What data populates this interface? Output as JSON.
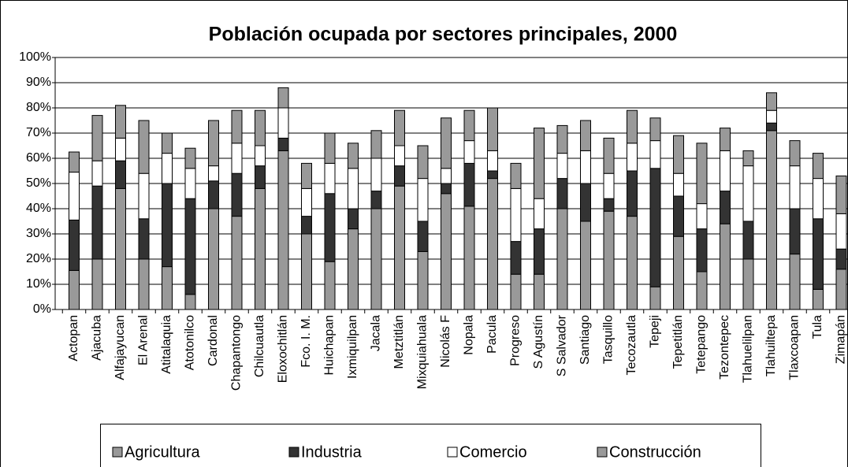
{
  "chart_data": {
    "type": "stacked_bar",
    "title": "Población ocupada por sectores principales, 2000",
    "categories": [
      "Actopan",
      "Ajacuba",
      "Alfajayucan",
      "El Arenal",
      "Atitalaquia",
      "Atotonilco",
      "Cardonal",
      "Chapantongo",
      "Chilcuautla",
      "Eloxochitlán",
      "Fco. I. M.",
      "Huichapan",
      "Ixmiquilpan",
      "Jacala",
      "Metztitlán",
      "Mixquiahuala",
      "Nicolás F",
      "Nopala",
      "Pacula",
      "Progreso",
      "S Agustín",
      "S Salvador",
      "Santiago",
      "Tasquillo",
      "Tecozautla",
      "Tepeji",
      "Tepetitlán",
      "Tetepango",
      "Tezontepec",
      "Tlahuelilpan",
      "Tlahuiltepa",
      "Tlaxcoapan",
      "Tula",
      "Zimapán"
    ],
    "series": [
      {
        "name": "Agricultura",
        "color": "#999999",
        "values": [
          15.5,
          20,
          48,
          20,
          17,
          6,
          40,
          37,
          48,
          63,
          30,
          19,
          32,
          40,
          49,
          23,
          46,
          41,
          52,
          14,
          14,
          40,
          35,
          39,
          37,
          9,
          29,
          15,
          34,
          20,
          71,
          22,
          8,
          16
        ]
      },
      {
        "name": "Industria",
        "color": "#333333",
        "values": [
          20,
          29,
          11,
          16,
          33,
          38,
          11,
          17,
          9,
          5,
          7,
          27,
          8,
          7,
          8,
          12,
          4,
          17,
          3,
          13,
          18,
          12,
          15,
          5,
          18,
          47,
          16,
          17,
          13,
          15,
          3,
          18,
          28,
          8
        ]
      },
      {
        "name": "Comercio",
        "color": "#ffffff",
        "values": [
          19,
          10,
          9,
          18,
          12,
          12,
          6,
          12,
          8,
          12,
          11,
          12,
          16,
          13,
          8,
          17,
          6,
          9,
          8,
          21,
          12,
          10,
          13,
          10,
          11,
          11,
          9,
          10,
          16,
          22,
          5,
          17,
          16,
          14
        ]
      },
      {
        "name": "Construcción",
        "color": "#999999",
        "values": [
          8,
          18,
          13,
          21,
          8,
          8,
          18,
          13,
          14,
          8,
          10,
          12,
          10,
          11,
          14,
          13,
          20,
          12,
          17,
          10,
          28,
          11,
          12,
          14,
          13,
          9,
          15,
          24,
          9,
          6,
          7,
          10,
          10,
          15
        ]
      }
    ],
    "ylim": [
      0,
      100
    ],
    "yticks": [
      {
        "value": 0,
        "label": "0%"
      },
      {
        "value": 10,
        "label": "10%"
      },
      {
        "value": 20,
        "label": "20%"
      },
      {
        "value": 30,
        "label": "30%"
      },
      {
        "value": 40,
        "label": "40%"
      },
      {
        "value": 50,
        "label": "50%"
      },
      {
        "value": 60,
        "label": "60%"
      },
      {
        "value": 70,
        "label": "70%"
      },
      {
        "value": 80,
        "label": "80%"
      },
      {
        "value": 90,
        "label": "90%"
      },
      {
        "value": 100,
        "label": "100%"
      }
    ],
    "grid": true,
    "legend": "bottom"
  }
}
